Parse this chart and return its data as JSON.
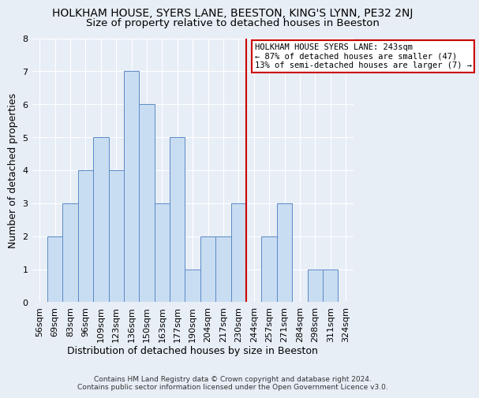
{
  "title": "HOLKHAM HOUSE, SYERS LANE, BEESTON, KING'S LYNN, PE32 2NJ",
  "subtitle": "Size of property relative to detached houses in Beeston",
  "xlabel": "Distribution of detached houses by size in Beeston",
  "ylabel": "Number of detached properties",
  "categories": [
    "56sqm",
    "69sqm",
    "83sqm",
    "96sqm",
    "109sqm",
    "123sqm",
    "136sqm",
    "150sqm",
    "163sqm",
    "177sqm",
    "190sqm",
    "204sqm",
    "217sqm",
    "230sqm",
    "244sqm",
    "257sqm",
    "271sqm",
    "284sqm",
    "298sqm",
    "311sqm",
    "324sqm"
  ],
  "values": [
    0,
    2,
    3,
    4,
    5,
    4,
    7,
    6,
    3,
    5,
    1,
    2,
    2,
    3,
    0,
    2,
    3,
    0,
    1,
    1,
    0
  ],
  "bar_color": "#c9ddf2",
  "bar_edge_color": "#5a8ac6",
  "marker_index": 14,
  "marker_color": "#cc0000",
  "ylim": [
    0,
    8
  ],
  "yticks": [
    0,
    1,
    2,
    3,
    4,
    5,
    6,
    7,
    8
  ],
  "annotation_title": "HOLKHAM HOUSE SYERS LANE: 243sqm",
  "annotation_line1": "← 87% of detached houses are smaller (47)",
  "annotation_line2": "13% of semi-detached houses are larger (7) →",
  "annotation_box_color": "#ffffff",
  "annotation_box_edge": "#cc0000",
  "background_color": "#e8eef6",
  "grid_color": "#ffffff",
  "footer_line1": "Contains HM Land Registry data © Crown copyright and database right 2024.",
  "footer_line2": "Contains public sector information licensed under the Open Government Licence v3.0.",
  "title_fontsize": 10,
  "subtitle_fontsize": 9.5,
  "axis_label_fontsize": 9,
  "tick_fontsize": 8,
  "annotation_fontsize": 7.5,
  "footer_fontsize": 6.5
}
